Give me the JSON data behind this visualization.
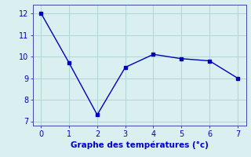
{
  "x": [
    0,
    1,
    2,
    3,
    4,
    5,
    6,
    7
  ],
  "y": [
    12.0,
    9.7,
    7.3,
    9.5,
    10.1,
    9.9,
    9.8,
    9.0
  ],
  "line_color": "#0000bb",
  "marker": "s",
  "marker_size": 2.5,
  "linewidth": 1.0,
  "xlabel": "Graphe des températures (°c)",
  "xlabel_fontsize": 7.5,
  "xlabel_color": "#0000cc",
  "xlim": [
    -0.3,
    7.3
  ],
  "ylim": [
    6.8,
    12.4
  ],
  "yticks": [
    7,
    8,
    9,
    10,
    11,
    12
  ],
  "xticks": [
    0,
    1,
    2,
    3,
    4,
    5,
    6,
    7
  ],
  "grid_color": "#b0d4d4",
  "background_color": "#daf0f0",
  "tick_fontsize": 7,
  "tick_color": "#0000bb",
  "spine_color": "#4444aa"
}
